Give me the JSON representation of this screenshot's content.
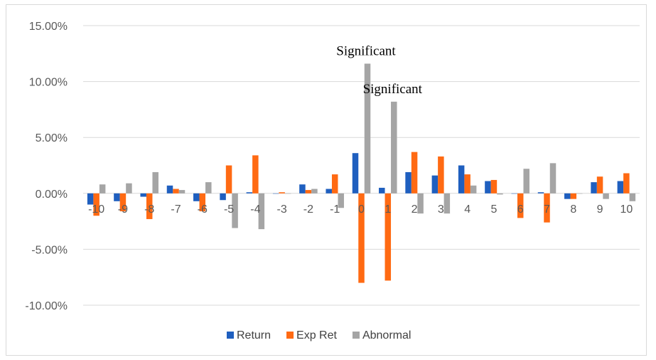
{
  "chart_data": {
    "type": "bar",
    "categories": [
      "-10",
      "-9",
      "-8",
      "-7",
      "-6",
      "-5",
      "-4",
      "-3",
      "-2",
      "-1",
      "0",
      "1",
      "2",
      "3",
      "4",
      "5",
      "6",
      "7",
      "8",
      "9",
      "10"
    ],
    "series": [
      {
        "name": "Return",
        "color": "#1f5fbf",
        "values": [
          -1.0,
          -0.7,
          -0.3,
          0.7,
          -0.7,
          -0.6,
          0.1,
          0.0,
          0.8,
          0.4,
          3.6,
          0.5,
          1.9,
          1.6,
          2.5,
          1.1,
          0.0,
          0.1,
          -0.5,
          1.0,
          1.1
        ]
      },
      {
        "name": "Exp Ret",
        "color": "#ff6a13",
        "values": [
          -2.0,
          -1.6,
          -2.3,
          0.4,
          -1.6,
          2.5,
          3.4,
          0.1,
          0.3,
          1.7,
          -8.0,
          -7.8,
          3.7,
          3.3,
          1.7,
          1.2,
          -2.2,
          -2.6,
          -0.5,
          1.5,
          1.8
        ]
      },
      {
        "name": "Abnormal",
        "color": "#a5a5a5",
        "values": [
          0.8,
          0.9,
          1.9,
          0.3,
          1.0,
          -3.1,
          -3.2,
          0.0,
          0.4,
          -1.3,
          11.6,
          8.2,
          -1.8,
          -1.8,
          0.7,
          -0.1,
          2.2,
          2.7,
          0.0,
          -0.5,
          -0.7
        ]
      }
    ],
    "yticks": [
      "15.00%",
      "10.00%",
      "5.00%",
      "0.00%",
      "-5.00%",
      "-10.00%"
    ],
    "ylim": [
      -10,
      15
    ],
    "grid": true,
    "legend_position": "bottom",
    "annotations": [
      {
        "text": "Significant",
        "category": "0"
      },
      {
        "text": "Significant",
        "category": "1"
      }
    ]
  }
}
